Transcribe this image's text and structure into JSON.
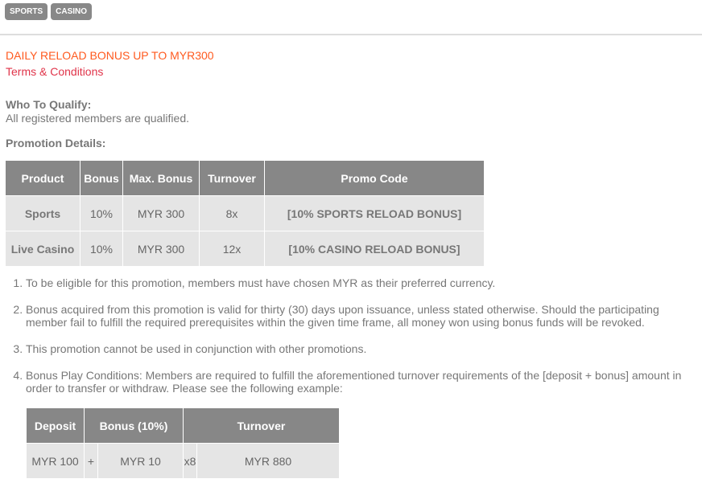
{
  "tabs": [
    "SPORTS",
    "CASINO"
  ],
  "title": "DAILY RELOAD BONUS UP TO MYR300",
  "terms_link": "Terms & Conditions",
  "qualify": {
    "heading": "Who To Qualify:",
    "text": "All registered members are qualified."
  },
  "details_heading": "Promotion Details:",
  "promo_table": {
    "headers": [
      "Product",
      "Bonus",
      "Max. Bonus",
      "Turnover",
      "Promo Code"
    ],
    "rows": [
      [
        "Sports",
        "10%",
        "MYR 300",
        "8x",
        "[10% SPORTS RELOAD BONUS]"
      ],
      [
        "Live Casino",
        "10%",
        "MYR 300",
        "12x",
        "[10% CASINO RELOAD BONUS]"
      ]
    ]
  },
  "terms": [
    "To be eligible for this promotion, members must have chosen MYR as their preferred currency.",
    "Bonus acquired from this promotion is valid for thirty (30) days upon issuance, unless stated otherwise. Should the participating member fail to fulfill the required prerequisites within the given time frame, all money won using bonus funds will be revoked.",
    "This promotion cannot be used in conjunction with other promotions.",
    "Bonus Play Conditions: Members are required to fulfill the aforementioned turnover requirements of the [deposit + bonus] amount in order to transfer or withdraw. Please see the following example:"
  ],
  "example_table": {
    "headers": [
      "Deposit",
      "Bonus (10%)",
      "Turnover"
    ],
    "row": [
      "MYR 100",
      "+",
      "MYR 10",
      "x8",
      "MYR 880"
    ]
  },
  "colors": {
    "title": "#ff5a1f",
    "link": "#e0344a",
    "header_bg": "#878787",
    "cell_bg": "#e5e5e5"
  }
}
